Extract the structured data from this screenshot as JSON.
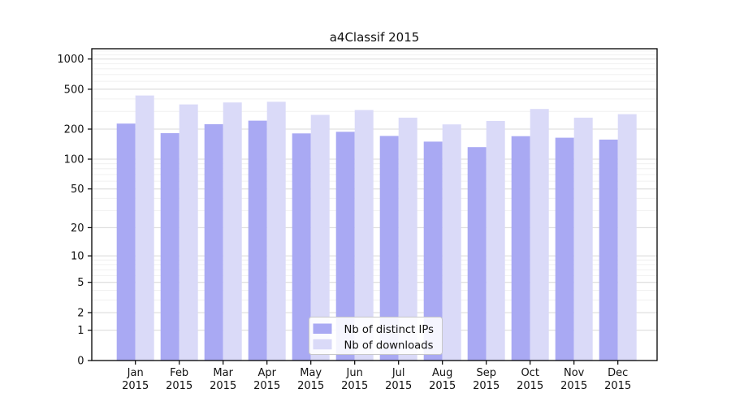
{
  "chart_data": {
    "type": "bar",
    "title": "a4Classif 2015",
    "categories": [
      "Jan",
      "Feb",
      "Mar",
      "Apr",
      "May",
      "Jun",
      "Jul",
      "Aug",
      "Sep",
      "Oct",
      "Nov",
      "Dec"
    ],
    "category_year": "2015",
    "series": [
      {
        "name": "Nb of distinct IPs",
        "color": "#a9a9f3",
        "values": [
          227,
          182,
          224,
          243,
          181,
          188,
          171,
          150,
          132,
          170,
          164,
          157
        ]
      },
      {
        "name": "Nb of downloads",
        "color": "#dadaf8",
        "values": [
          433,
          353,
          369,
          375,
          277,
          310,
          260,
          223,
          241,
          318,
          260,
          282
        ]
      }
    ],
    "xlabel": "",
    "ylabel": "",
    "y_scale": "log1p",
    "y_ticks": [
      0,
      1,
      2,
      5,
      10,
      20,
      50,
      100,
      200,
      500,
      1000
    ],
    "ylim": [
      0,
      1270
    ],
    "grid": "horizontal major+minor",
    "legend_position": "bottom-center"
  },
  "colors": {
    "background": "#ffffff",
    "axis": "#000000",
    "grid_major": "#d9d9d9",
    "grid_minor": "#f0f0f0",
    "legend_border": "#c8c8c8",
    "legend_background": "rgba(255,255,255,0.88)",
    "text": "#111111"
  }
}
